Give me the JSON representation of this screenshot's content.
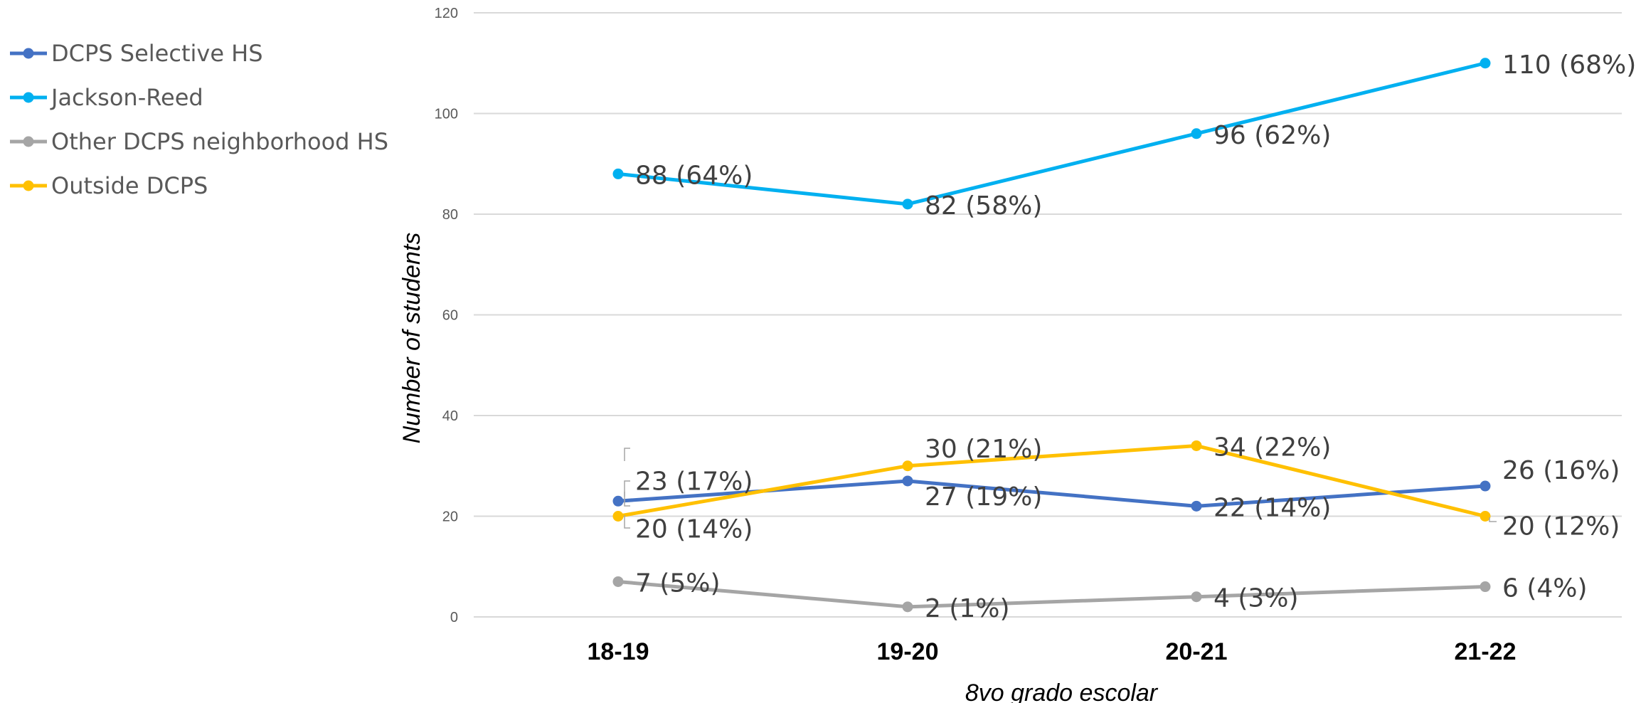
{
  "chart_data": {
    "type": "line",
    "categories": [
      "18-19",
      "19-20",
      "20-21",
      "21-22"
    ],
    "xlabel": "8vo grado escolar",
    "ylabel": "Number of students",
    "ylim": [
      0,
      120
    ],
    "yticks": [
      0,
      20,
      40,
      60,
      80,
      100,
      120
    ],
    "grid": true,
    "legend_position": "left",
    "series": [
      {
        "name": "DCPS Selective HS",
        "color": "#4472c4",
        "values": [
          23,
          27,
          22,
          26
        ],
        "labels": [
          "23 (17%)",
          "27 (19%)",
          "22 (14%)",
          "26 (16%)"
        ]
      },
      {
        "name": "Jackson-Reed",
        "color": "#00b0f0",
        "values": [
          88,
          82,
          96,
          110
        ],
        "labels": [
          "88 (64%)",
          "82 (58%)",
          "96 (62%)",
          "110 (68%)"
        ]
      },
      {
        "name": "Other DCPS neighborhood HS",
        "color": "#a5a5a5",
        "values": [
          7,
          2,
          4,
          6
        ],
        "labels": [
          "7 (5%)",
          "2 (1%)",
          "4 (3%)",
          "6 (4%)"
        ]
      },
      {
        "name": "Outside DCPS",
        "color": "#ffc000",
        "values": [
          20,
          30,
          34,
          20
        ],
        "labels": [
          "20 (14%)",
          "30 (21%)",
          "34 (22%)",
          "20 (12%)"
        ]
      }
    ]
  }
}
